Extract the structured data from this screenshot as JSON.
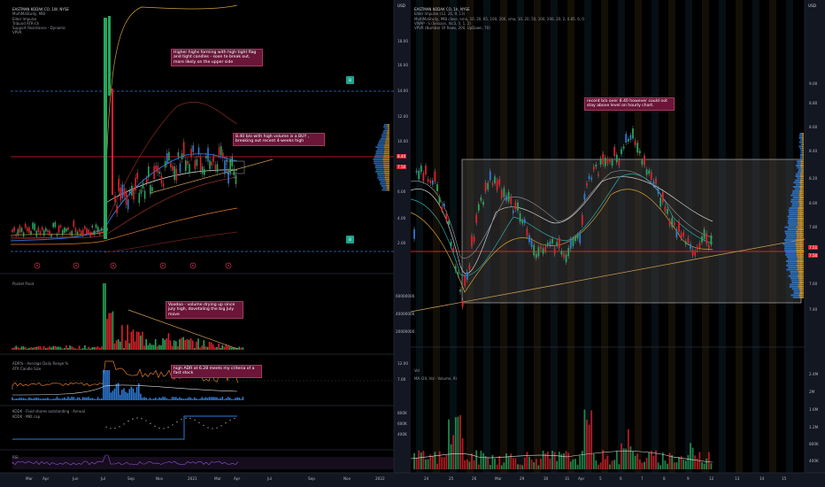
{
  "left": {
    "title": "EASTMAN KODAK CO, 1W, NYSE",
    "indicators": [
      "MultiMaStudy, MIB",
      "Elder Impulse",
      "Tribund ATR-Ch",
      "Support Resistance - Dynamic",
      "VPVR"
    ],
    "annotations": {
      "flag": "Higher highs forming with high tight flag and tight candles - soon to break out, more likely on the upper side",
      "buy": "8.40 b/o with high volume is a BUY , breaking out recent 4-weeks high",
      "voodoo": "Voodoo - volume drying up since july high, dovetaling the big July move",
      "adr": "high ADR at 6.28 meets my criteria of a fast stock"
    },
    "price_labels": [
      "18.00",
      "16.00",
      "14.00",
      "12.00",
      "10.00",
      "8.00",
      "6.00",
      "4.00",
      "2.00"
    ],
    "price_highlights": [
      "8.40",
      "7.50"
    ],
    "volume_labels": [
      "60000000",
      "40000000",
      "20000000"
    ],
    "pane_titles": {
      "pocket": "Pocket Pivot",
      "adr_1": "ADR% - Average Daily Range %",
      "adr_2": "ATR Candle Size",
      "float_1": "KODK · Fluid shares outstanding · Annual",
      "float_2": "KODK · MKt cap"
    },
    "adr_labels": [
      "12.00",
      "7.00"
    ],
    "float_labels": [
      "800K",
      "600K",
      "400K"
    ],
    "rsi_label": "RSI",
    "x_labels": [
      "Mar",
      "Apr",
      "Jun",
      "Jul",
      "Sep",
      "Nov",
      "2021",
      "Mar",
      "Apr",
      "Jul",
      "Sep",
      "Nov",
      "2022"
    ],
    "tags": [
      "B",
      "B"
    ]
  },
  "right": {
    "title": "EASTMAN KODAK CO, 1h, NYSE",
    "indicators": [
      "Elder Impulse (12, 26, 9, 13)",
      "MultiMaStudy, MIB close, ema, 10, 20, 65, 100, 200, sma, 10, 20, 50, 100, 200, 20, 2, 0.85, 6, 0",
      "VWAP · S (Session, hlc3, 0, 1, 2)",
      "VPVR (Number Of Rows, 200, UpDown, 70)"
    ],
    "annotation": "recent b/o over 8.40 however could not stay above level on hourly chart.",
    "price_labels": [
      "9.00",
      "8.80",
      "8.60",
      "8.40",
      "8.20",
      "8.00",
      "7.80",
      "7.60",
      "7.40"
    ],
    "price_highlights": [
      "7.51",
      "7.50"
    ],
    "vol_title": "Vol",
    "vol_legend": "MA (20, Vol · Volume, 9)",
    "vol_labels": [
      "2.4M",
      "2M",
      "1.6M",
      "1.2M",
      "800K",
      "400K"
    ],
    "x_labels": [
      "24",
      "25",
      "26",
      "Mar",
      "29",
      "30",
      "31",
      "Apr",
      "5",
      "6",
      "7",
      "8",
      "9",
      "12",
      "13",
      "14",
      "15"
    ],
    "currency": "USD"
  },
  "chart_data": [
    {
      "type": "candlestick",
      "title": "EASTMAN KODAK CO, 1W, NYSE",
      "horizontal_levels": [
        14.0,
        8.4,
        1.9
      ],
      "annotated_breakout": 8.4,
      "ylim": [
        0,
        19
      ]
    },
    {
      "type": "candlestick",
      "title": "EASTMAN KODAK CO, 1h, NYSE",
      "horizontal_levels": [
        7.5
      ],
      "range_box": [
        7.65,
        8.65
      ],
      "ylim": [
        7.35,
        9.05
      ]
    }
  ]
}
